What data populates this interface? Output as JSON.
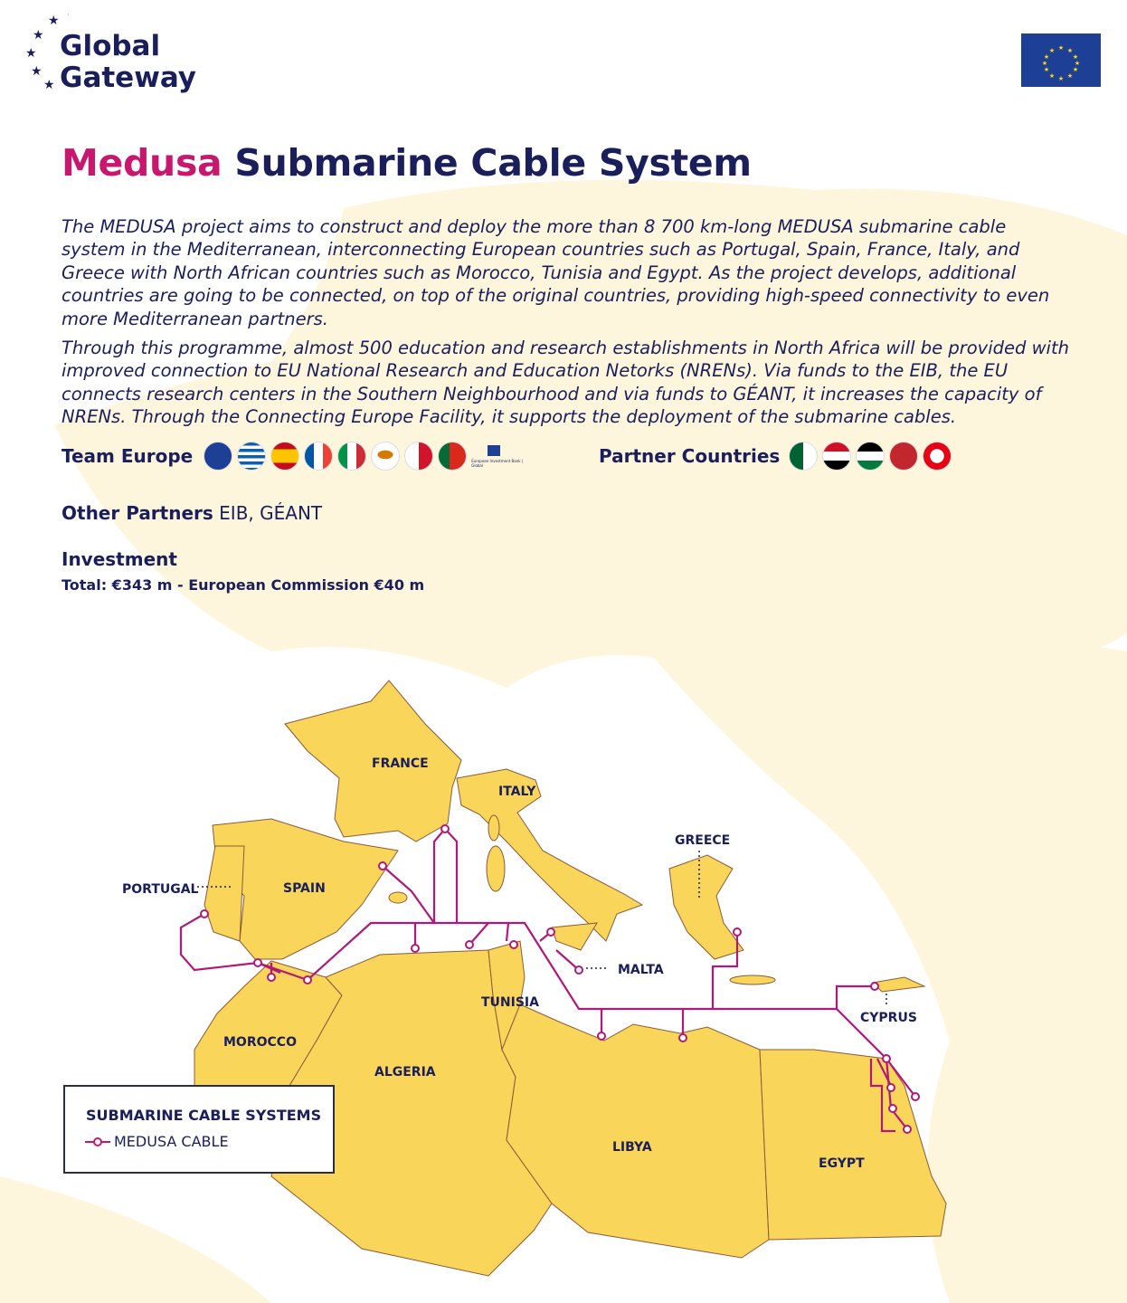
{
  "header": {
    "logo_text_line1": "Global",
    "logo_text_line2": "Gateway",
    "eu_flag_icon": "eu-flag-icon"
  },
  "title": {
    "highlight": "Medusa",
    "rest": "Submarine Cable System"
  },
  "intro": [
    "The MEDUSA project aims to construct and deploy the more than 8 700 km-long MEDUSA submarine cable system in the Mediterranean, interconnecting European countries such as Portugal, Spain, France, Italy, and Greece with North African countries such as Morocco, Tunisia and Egypt. As the project develops, additional countries are going to be connected, on top of the original countries, providing high-speed connectivity to even more Mediterranean partners.",
    "Through this programme, almost 500 education and research establishments in North Africa will be provided with improved connection to EU National Research and Education Netorks (NRENs). Via funds to the EIB, the EU connects research centers in the Southern Neighbourhood and via funds to GÉANT, it increases the capacity of NRENs. Through the Connecting Europe Facility, it supports the deployment of the submarine cables."
  ],
  "team_europe": {
    "label": "Team Europe",
    "flags": [
      "EU",
      "Greece",
      "Spain",
      "France",
      "Italy",
      "Cyprus",
      "Malta",
      "Portugal"
    ],
    "eib_logo_text": "European Investment Bank | Global"
  },
  "partner_countries": {
    "label": "Partner Countries",
    "flags": [
      "Algeria",
      "Egypt",
      "Jordan",
      "Morocco",
      "Tunisia"
    ]
  },
  "other_partners": {
    "label": "Other Partners",
    "value": "EIB, GÉANT"
  },
  "investment": {
    "label": "Investment",
    "value": "Total: €343 m - European Commission €40 m"
  },
  "map": {
    "labels": {
      "france": "FRANCE",
      "italy": "ITALY",
      "greece": "GREECE",
      "portugal": "PORTUGAL",
      "spain": "SPAIN",
      "malta": "MALTA",
      "tunisia": "TUNISIA",
      "cyprus": "CYPRUS",
      "morocco": "MOROCCO",
      "algeria": "ALGERIA",
      "libya": "LIBYA",
      "egypt": "EGYPT"
    },
    "land_color": "#f9d65a",
    "cable_color": "#b0197a"
  },
  "legend": {
    "title": "SUBMARINE CABLE SYSTEMS",
    "item": "MEDUSA CABLE"
  },
  "colors": {
    "navy": "#1a1f5c",
    "magenta": "#c8176e",
    "yellow": "#f9d65a"
  }
}
